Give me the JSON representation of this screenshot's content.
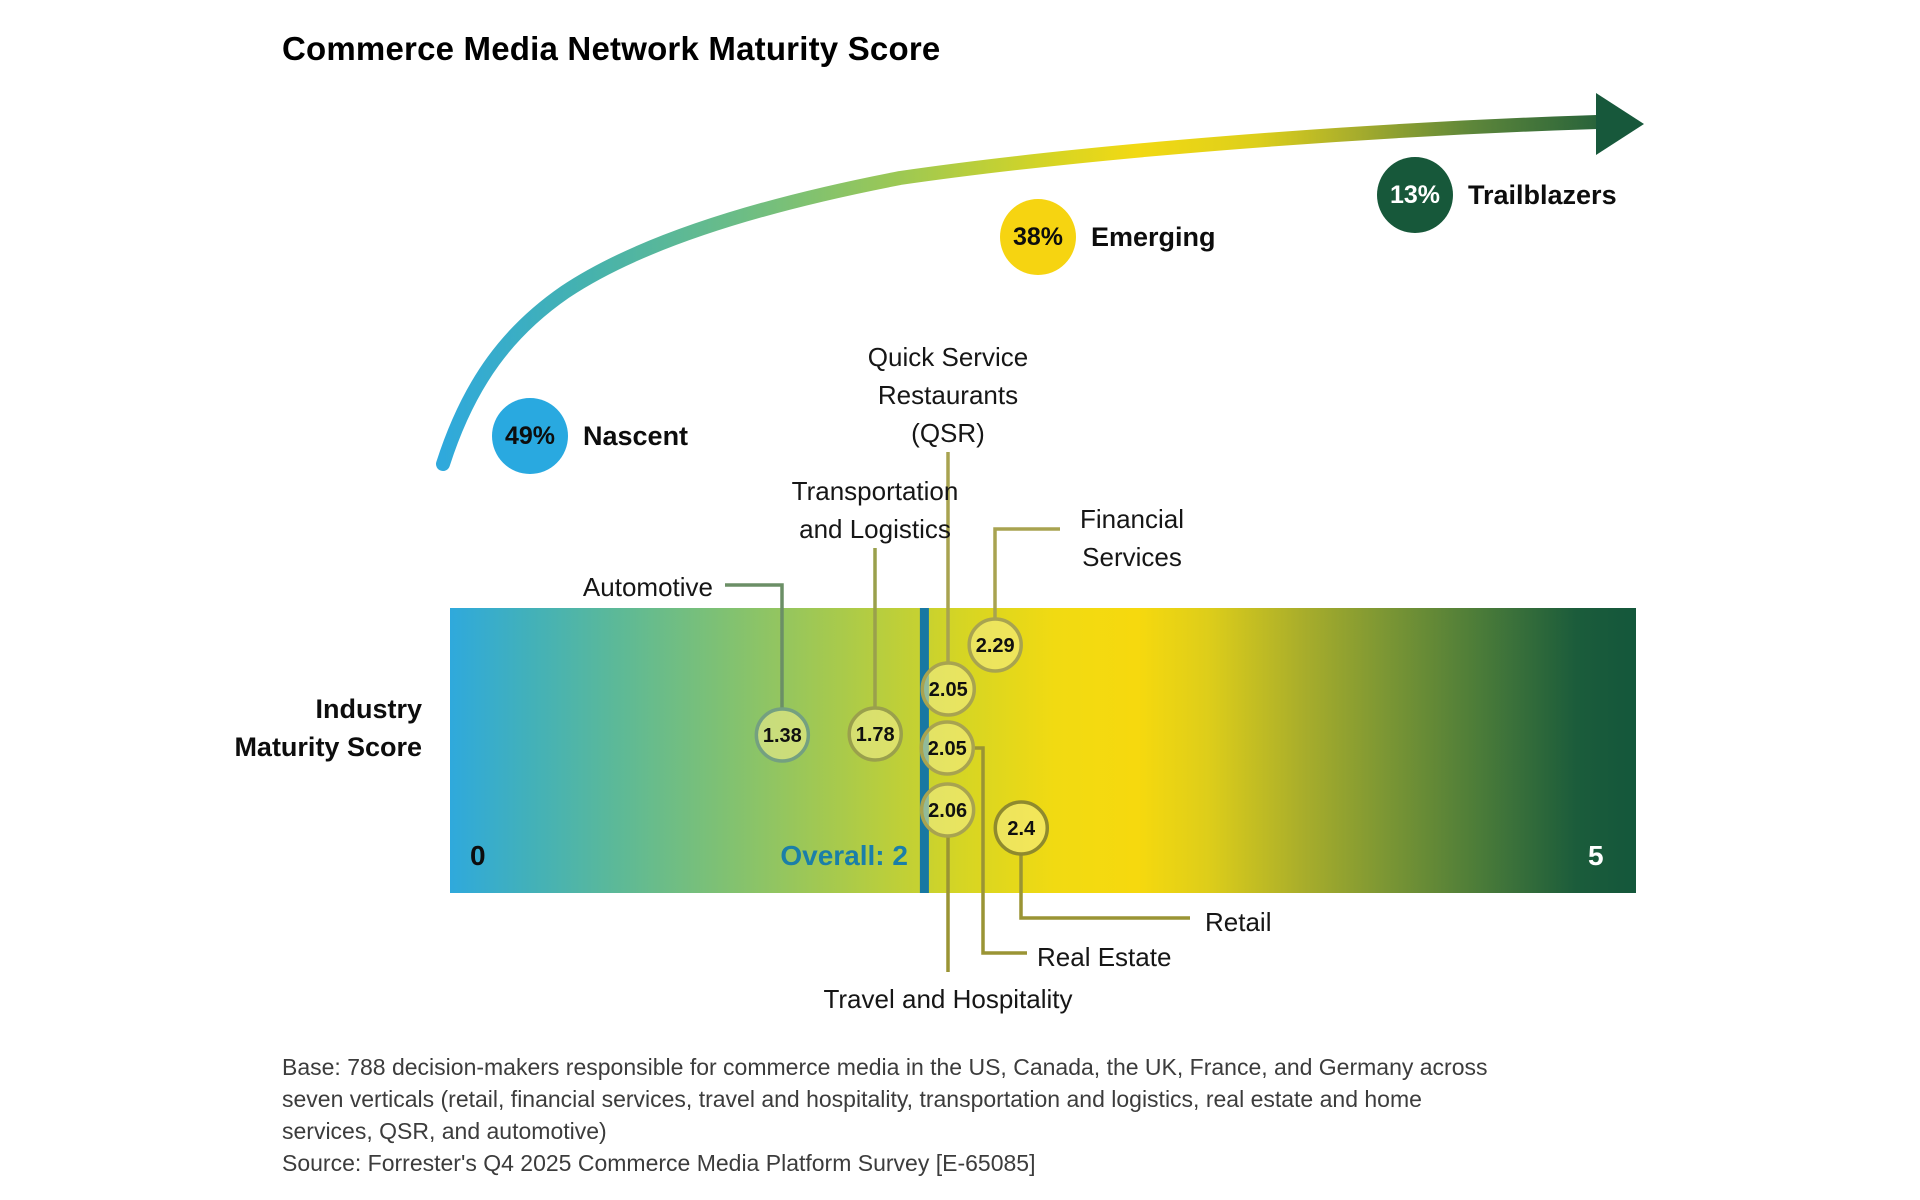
{
  "title": "Commerce Media Network Maturity Score",
  "stages": [
    {
      "pct": "49%",
      "label": "Nascent",
      "color": "#29a9e0",
      "text_color": "#0d0d0d"
    },
    {
      "pct": "38%",
      "label": "Emerging",
      "color": "#f6d411",
      "text_color": "#0d0d0d"
    },
    {
      "pct": "13%",
      "label": "Trailblazers",
      "color": "#17583a",
      "text_color": "#ffffff"
    }
  ],
  "bar": {
    "axis_label": "Industry Maturity Score",
    "min_label": "0",
    "max_label": "5",
    "overall_label": "Overall: 2",
    "overall_color": "#1b7fa8",
    "marker_color": "#1878a2"
  },
  "chart_data": {
    "type": "scatter",
    "title": "Commerce Media Network Maturity Score",
    "xlabel": "Industry Maturity Score",
    "xlim": [
      0,
      5
    ],
    "overall": 2,
    "points": [
      {
        "label": "Automotive",
        "value": 1.38
      },
      {
        "label": "Transportation and Logistics",
        "value": 1.78
      },
      {
        "label": "Quick Service Restaurants (QSR)",
        "value": 2.05
      },
      {
        "label": "Financial Services",
        "value": 2.29
      },
      {
        "label": "Real Estate",
        "value": 2.05
      },
      {
        "label": "Travel and Hospitality",
        "value": 2.06
      },
      {
        "label": "Retail",
        "value": 2.4
      }
    ],
    "maturity_segments": [
      {
        "label": "Nascent",
        "share_pct": 49
      },
      {
        "label": "Emerging",
        "share_pct": 38
      },
      {
        "label": "Trailblazers",
        "share_pct": 13
      }
    ]
  },
  "footnote": {
    "base_lines": [
      "Base: 788 decision-makers responsible for commerce media in the US, Canada, the UK, France, and Germany across",
      "seven verticals (retail, financial services, travel and hospitality, transportation and logistics, real estate and home",
      "services, QSR, and automotive)"
    ],
    "source": "Source: Forrester's Q4 2025 Commerce Media Platform Survey [E-65085]"
  }
}
